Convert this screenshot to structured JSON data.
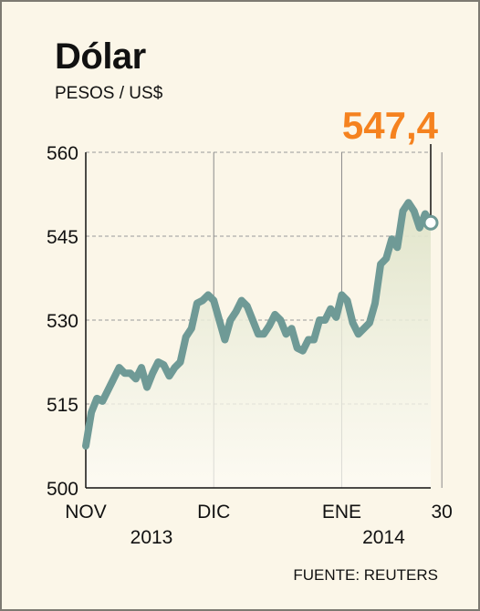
{
  "title": "Dólar",
  "subtitle": "PESOS / US$",
  "source": "FUENTE: REUTERS",
  "colors": {
    "background": "#fbf6e8",
    "line": "#6f9a96",
    "callout": "#f5821f",
    "grid": "#9a9a9a"
  },
  "chart_data": {
    "type": "line",
    "ylim": [
      500,
      560
    ],
    "yticks": [
      500,
      515,
      530,
      545,
      560
    ],
    "xlabels": [
      {
        "label": "NOV",
        "year": "2013",
        "at": 0
      },
      {
        "label": "DIC",
        "year": "",
        "at": 23
      },
      {
        "label": "ENE",
        "year": "2014",
        "at": 46
      },
      {
        "label": "30",
        "year": "",
        "at": 64
      }
    ],
    "vlines": [
      23,
      46,
      64
    ],
    "grid": true,
    "last_value_label": "547,4",
    "series": [
      {
        "values": [
          507.5,
          513.5,
          516,
          515.5,
          517.5,
          519.5,
          521.5,
          520.5,
          520.5,
          519.5,
          521.5,
          518,
          520.5,
          522.5,
          522,
          520,
          521.5,
          522.5,
          527,
          528.5,
          533,
          533.5,
          534.5,
          533.5,
          530,
          526.5,
          530,
          531.5,
          533.5,
          532.5,
          530,
          527.5,
          527.5,
          529,
          531,
          530,
          527.5,
          528.5,
          525,
          524.5,
          526.5,
          526.5,
          530,
          530,
          532,
          530.5,
          534.5,
          533.5,
          529.5,
          527.5,
          528.5,
          529.5,
          533,
          540,
          541,
          544.5,
          543,
          549.5,
          551,
          549.5,
          546.5,
          549,
          547.4
        ]
      }
    ]
  }
}
